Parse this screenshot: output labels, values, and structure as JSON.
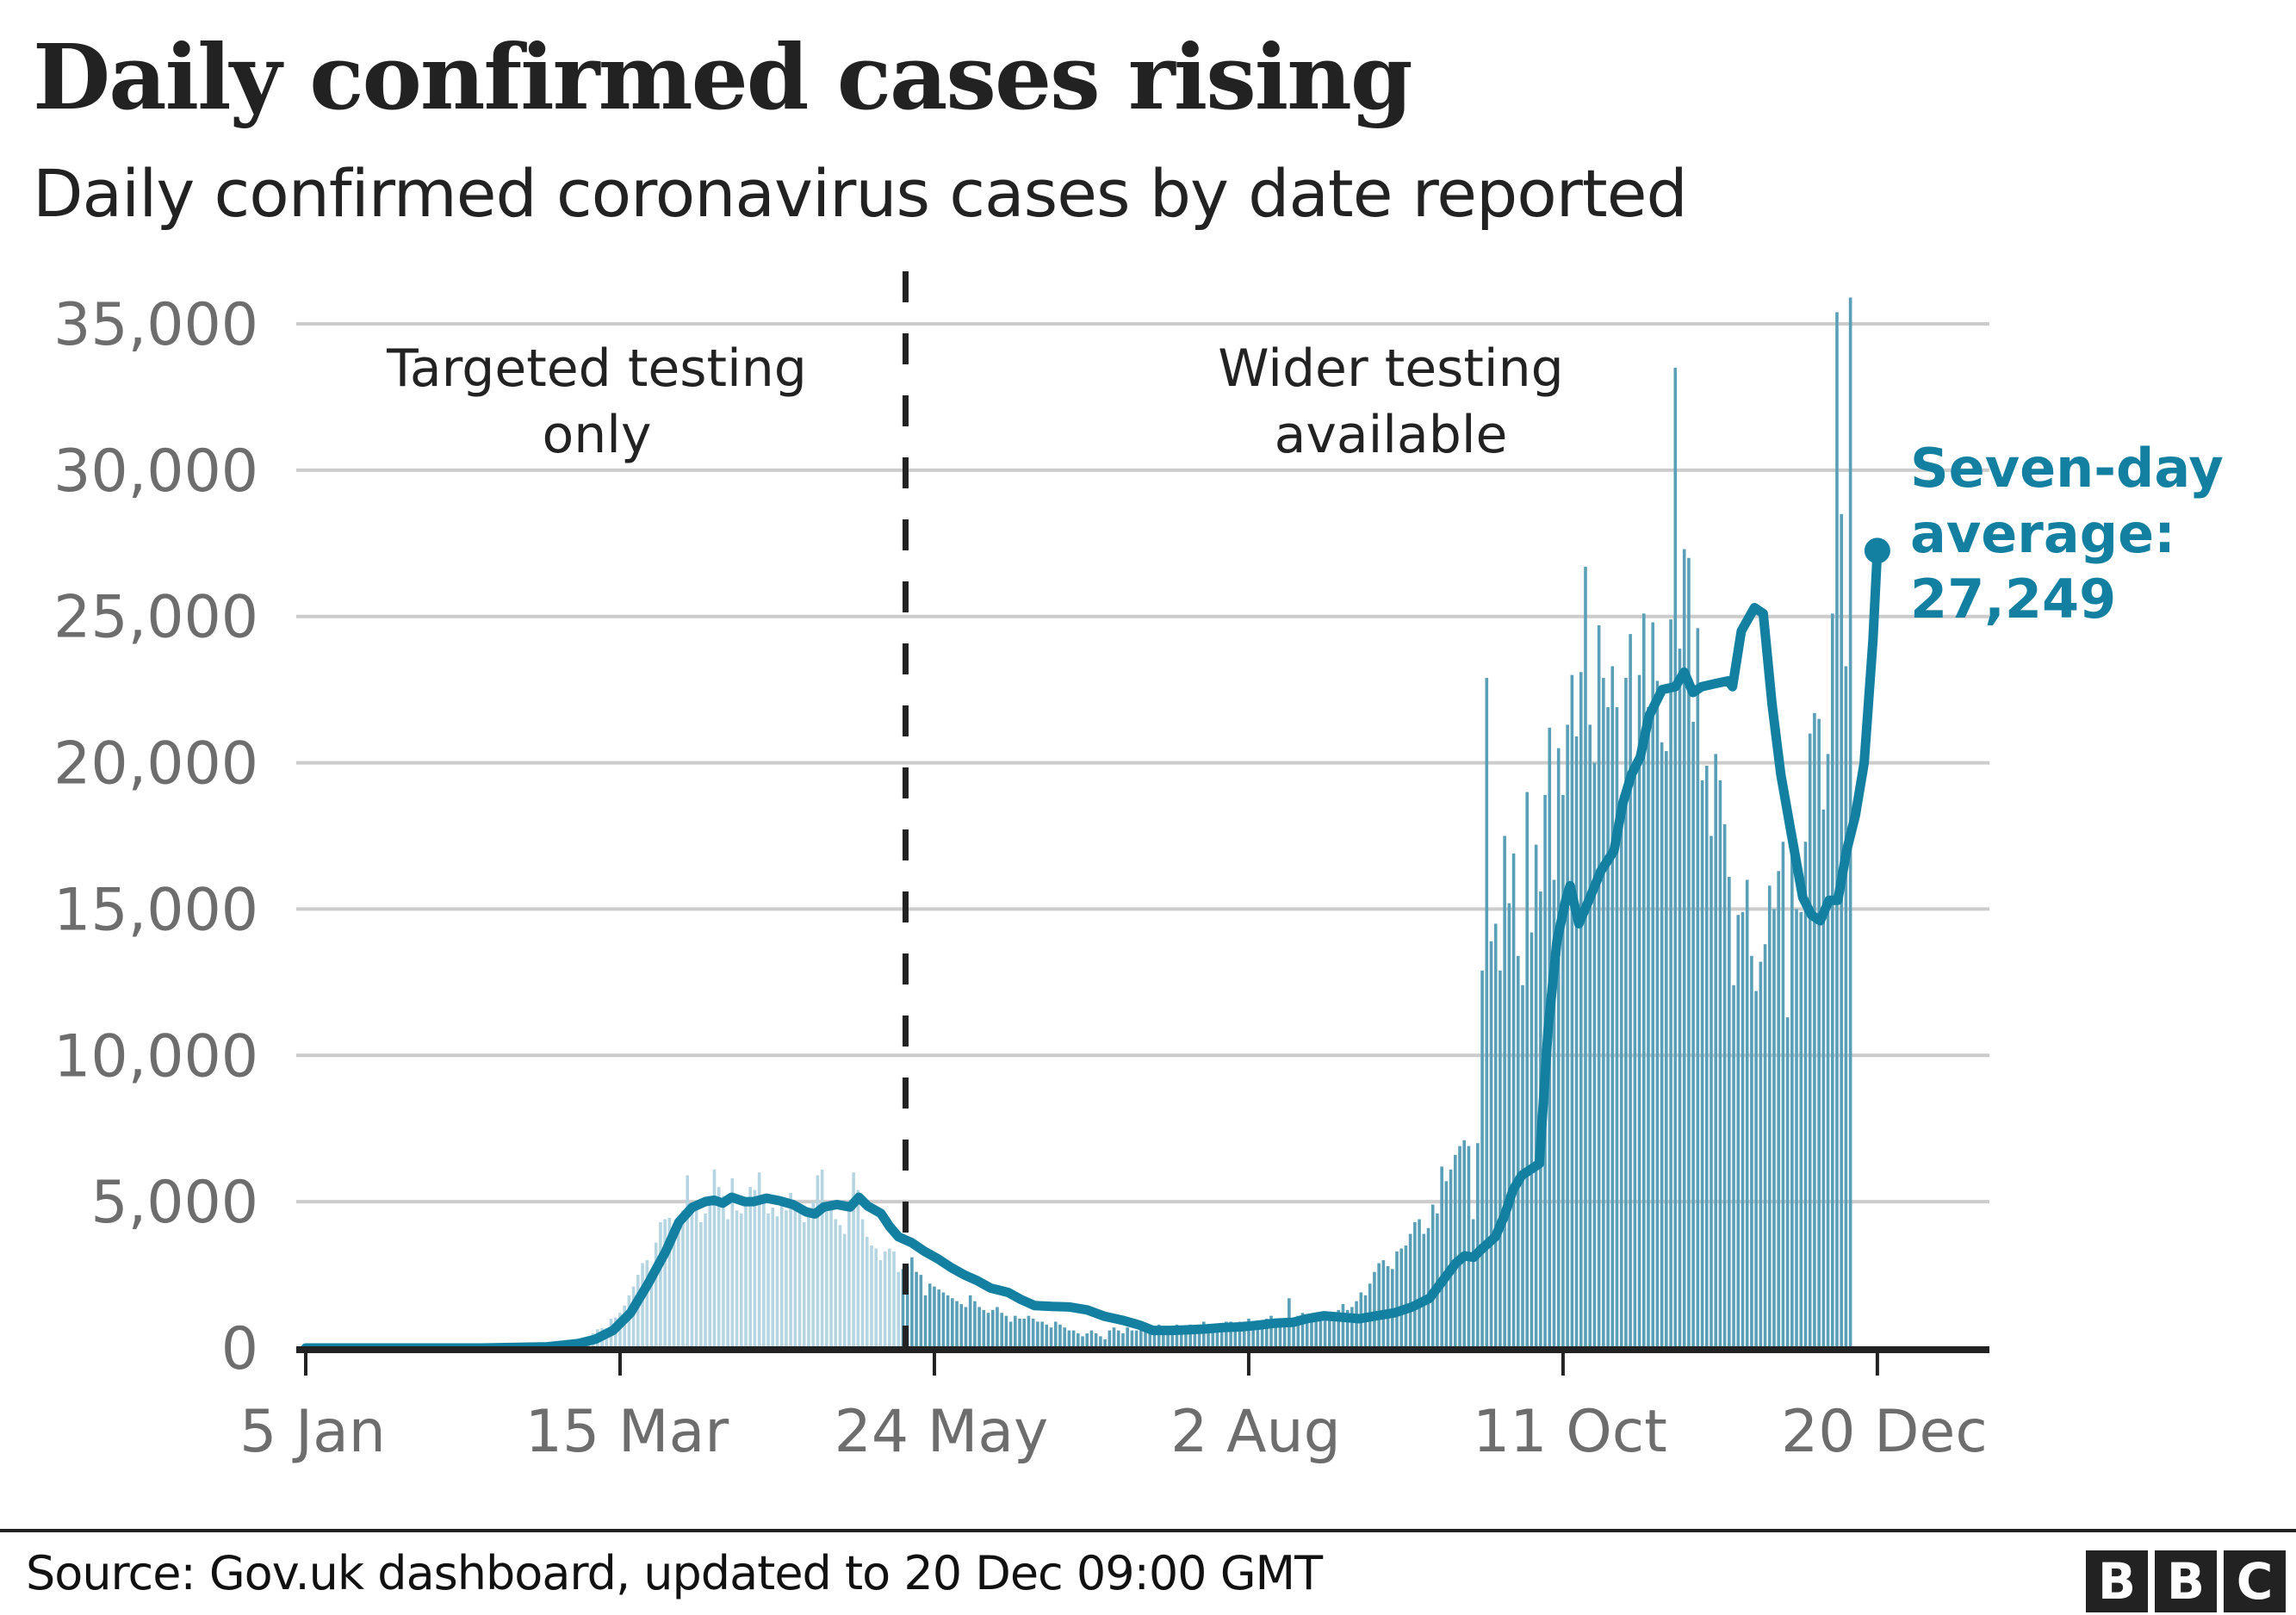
{
  "header": {
    "title": "Daily confirmed cases rising",
    "subtitle": "Daily confirmed coronavirus cases by date reported"
  },
  "footer": {
    "source": "Source: Gov.uk dashboard, updated to 20 Dec 09:00 GMT",
    "logo_letters": [
      "B",
      "B",
      "C"
    ]
  },
  "colors": {
    "bars_targeted": "#b5d5e2",
    "bars_wider": "#5a9fb8",
    "average_line": "#1380a1",
    "gridline": "#cccccc",
    "axis": "#222222",
    "tick_text": "#6d6d6d"
  },
  "chart_data": {
    "type": "bar",
    "title": "Daily confirmed cases rising",
    "subtitle": "Daily confirmed coronavirus cases by date reported",
    "xlabel": "",
    "ylabel": "",
    "ylim": [
      0,
      35000
    ],
    "grid": true,
    "yticks": [
      0,
      5000,
      10000,
      15000,
      20000,
      25000,
      30000,
      35000
    ],
    "ytick_labels": [
      "0",
      "5,000",
      "10,000",
      "15,000",
      "20,000",
      "25,000",
      "30,000",
      "35,000"
    ],
    "x_start": "5 Jan",
    "x_end": "20 Dec",
    "xticks_day_index": [
      0,
      70,
      140,
      210,
      280,
      350
    ],
    "xtick_labels": [
      "5 Jan",
      "15 Mar",
      "24 May",
      "2 Aug",
      "11 Oct",
      "20 Dec"
    ],
    "divider_day_index": 133,
    "regions": [
      {
        "name": "targeted",
        "lines": [
          "Targeted testing",
          "only"
        ]
      },
      {
        "name": "wider",
        "lines": [
          "Wider testing",
          "available"
        ]
      }
    ],
    "annotation": {
      "lines": [
        "Seven-day",
        "average:",
        "27,249"
      ],
      "value": 27249,
      "day_index": 350
    },
    "series": [
      {
        "name": "Daily confirmed cases",
        "type": "bar",
        "start_day_index": 55,
        "values": [
          50,
          80,
          90,
          120,
          150,
          200,
          260,
          320,
          400,
          500,
          640,
          680,
          680,
          1000,
          1040,
          1200,
          1450,
          1800,
          2100,
          2500,
          2900,
          3000,
          2500,
          3600,
          4300,
          4400,
          4450,
          3700,
          4200,
          4700,
          5900,
          4900,
          4800,
          4300,
          4600,
          5200,
          6100,
          5500,
          5200,
          4400,
          5800,
          4700,
          4600,
          4900,
          5500,
          5400,
          6000,
          5200,
          4600,
          4800,
          4500,
          5000,
          4700,
          5300,
          5000,
          4900,
          4300,
          4500,
          5000,
          5900,
          6100,
          4700,
          4800,
          4400,
          4200,
          3900,
          4900,
          6000,
          5400,
          4400,
          3800,
          3500,
          3400,
          3000,
          3300,
          3400,
          3300,
          2600,
          2700,
          2800,
          3100,
          2600,
          2500,
          1800,
          2200,
          2100,
          2000,
          1900,
          1800,
          1700,
          1600,
          1500,
          1400,
          1800,
          1600,
          1400,
          1300,
          1200,
          1300,
          1400,
          1200,
          1100,
          900,
          1100,
          1000,
          1000,
          1100,
          1000,
          900,
          900,
          800,
          700,
          900,
          800,
          700,
          600,
          600,
          500,
          400,
          500,
          600,
          500,
          400,
          300,
          600,
          700,
          600,
          500,
          700,
          600,
          600,
          700,
          600,
          700,
          600,
          800,
          700,
          600,
          700,
          800,
          700,
          700,
          800,
          700,
          800,
          900,
          800,
          800,
          700,
          800,
          900,
          900,
          800,
          900,
          900,
          1000,
          900,
          800,
          900,
          1000,
          1100,
          900,
          1000,
          1000,
          1700,
          1000,
          1100,
          1200,
          1100,
          1000,
          1000,
          1200,
          1100,
          1200,
          1200,
          1300,
          1500,
          1300,
          1400,
          1600,
          1900,
          1800,
          2200,
          2600,
          2900,
          3000,
          2800,
          2700,
          3300,
          3400,
          3500,
          3900,
          4300,
          4400,
          3900,
          4100,
          4900,
          4600,
          6200,
          5700,
          6100,
          6600,
          6900,
          7100,
          6900,
          4400,
          7000,
          12900,
          22900,
          13900,
          14500,
          12900,
          17500,
          15200,
          16900,
          13400,
          12400,
          19000,
          14200,
          17200,
          15600,
          18900,
          21200,
          16000,
          20500,
          18900,
          21300,
          23000,
          20900,
          23100,
          26700,
          21300,
          20000,
          24700,
          22900,
          21900,
          23300,
          21900,
          18900,
          22900,
          24400,
          20000,
          23000,
          25100,
          21900,
          24800,
          22800,
          20700,
          20400,
          24900,
          33500,
          23900,
          27300,
          27000,
          21400,
          24600,
          19400,
          19900,
          17500,
          20300,
          19400,
          17900,
          16100,
          12400,
          14800,
          14900,
          16000,
          13400,
          12200,
          13200,
          13800,
          15800,
          15000,
          16300,
          17300,
          11300,
          17100,
          15000,
          14900,
          17300,
          21000,
          21700,
          21500,
          18400,
          20300,
          25100,
          35400,
          28500,
          23300,
          35900
        ]
      },
      {
        "name": "Seven-day average",
        "type": "line",
        "points": [
          [
            0,
            0
          ],
          [
            40,
            0
          ],
          [
            55,
            40
          ],
          [
            62,
            150
          ],
          [
            66,
            300
          ],
          [
            70,
            600
          ],
          [
            74,
            1200
          ],
          [
            78,
            2200
          ],
          [
            82,
            3300
          ],
          [
            85,
            4300
          ],
          [
            88,
            4800
          ],
          [
            91,
            5000
          ],
          [
            93,
            5050
          ],
          [
            95,
            4950
          ],
          [
            97,
            5150
          ],
          [
            100,
            5000
          ],
          [
            102,
            5000
          ],
          [
            105,
            5120
          ],
          [
            108,
            5030
          ],
          [
            111,
            4900
          ],
          [
            114,
            4650
          ],
          [
            116,
            4580
          ],
          [
            118,
            4820
          ],
          [
            121,
            4900
          ],
          [
            124,
            4820
          ],
          [
            126,
            5150
          ],
          [
            128,
            4850
          ],
          [
            131,
            4600
          ],
          [
            133,
            4150
          ],
          [
            135,
            3800
          ],
          [
            138,
            3600
          ],
          [
            141,
            3300
          ],
          [
            144,
            3050
          ],
          [
            147,
            2750
          ],
          [
            150,
            2500
          ],
          [
            153,
            2300
          ],
          [
            156,
            2050
          ],
          [
            160,
            1900
          ],
          [
            163,
            1650
          ],
          [
            166,
            1450
          ],
          [
            170,
            1420
          ],
          [
            174,
            1400
          ],
          [
            178,
            1300
          ],
          [
            182,
            1080
          ],
          [
            186,
            950
          ],
          [
            190,
            780
          ],
          [
            193,
            600
          ],
          [
            197,
            600
          ],
          [
            201,
            620
          ],
          [
            205,
            650
          ],
          [
            209,
            700
          ],
          [
            213,
            720
          ],
          [
            217,
            780
          ],
          [
            221,
            850
          ],
          [
            225,
            880
          ],
          [
            228,
            1000
          ],
          [
            232,
            1100
          ],
          [
            236,
            1050
          ],
          [
            240,
            1000
          ],
          [
            244,
            1100
          ],
          [
            248,
            1200
          ],
          [
            252,
            1400
          ],
          [
            256,
            1700
          ],
          [
            259,
            2300
          ],
          [
            262,
            2900
          ],
          [
            264,
            3150
          ],
          [
            266,
            3100
          ],
          [
            268,
            3400
          ],
          [
            271,
            3800
          ],
          [
            273,
            4500
          ],
          [
            275,
            5400
          ],
          [
            277,
            5900
          ],
          [
            279,
            6100
          ],
          [
            281,
            6300
          ],
          [
            283,
            10900
          ],
          [
            285,
            13900
          ],
          [
            287,
            15300
          ],
          [
            288,
            15800
          ],
          [
            290,
            14500
          ],
          [
            292,
            15200
          ],
          [
            295,
            16300
          ],
          [
            298,
            17000
          ],
          [
            300,
            18600
          ],
          [
            302,
            19600
          ],
          [
            304,
            20200
          ],
          [
            306,
            21600
          ],
          [
            309,
            22500
          ],
          [
            312,
            22600
          ],
          [
            314,
            23100
          ],
          [
            316,
            22400
          ],
          [
            318,
            22600
          ],
          [
            321,
            22700
          ],
          [
            324,
            22800
          ],
          [
            325,
            22600
          ],
          [
            327,
            24500
          ],
          [
            330,
            25300
          ],
          [
            332,
            25100
          ],
          [
            334,
            22000
          ],
          [
            336,
            19600
          ],
          [
            338,
            17900
          ],
          [
            341,
            15400
          ],
          [
            343,
            14800
          ],
          [
            345,
            14600
          ],
          [
            347,
            15300
          ],
          [
            349,
            15300
          ],
          [
            351,
            17000
          ],
          [
            353,
            18200
          ],
          [
            355,
            20000
          ],
          [
            357,
            24200
          ],
          [
            358,
            27249
          ]
        ]
      }
    ]
  }
}
